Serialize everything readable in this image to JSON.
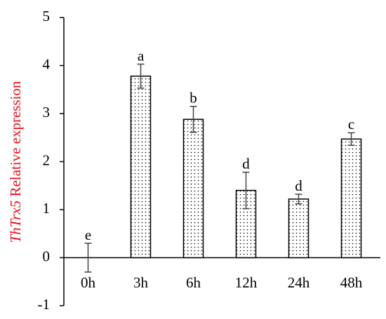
{
  "chart_data": {
    "type": "bar",
    "ylabel": {
      "gene": "ThTrx5",
      "text": "Relative expression",
      "color": "#e8101a"
    },
    "categories": [
      "0h",
      "3h",
      "6h",
      "12h",
      "24h",
      "48h"
    ],
    "values": [
      0,
      3.78,
      2.88,
      1.4,
      1.22,
      2.47
    ],
    "errors": [
      0.3,
      0.25,
      0.27,
      0.38,
      0.1,
      0.13
    ],
    "letters": [
      "e",
      "a",
      "b",
      "d",
      "d",
      "c"
    ],
    "color": "#ffffff",
    "ylim": [
      -1,
      5
    ],
    "yticks": [
      -1,
      0,
      1,
      2,
      3,
      4,
      5
    ],
    "grid": false
  }
}
